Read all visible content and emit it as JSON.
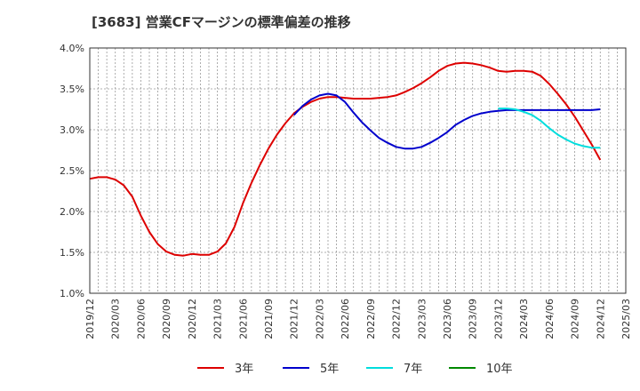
{
  "chart_data": {
    "type": "line",
    "title": "[3683]  営業CFマージンの標準偏差の推移",
    "xlabel": "",
    "ylabel": "",
    "ylim": [
      0.01,
      0.04
    ],
    "grid": true,
    "legend_placement": "bottom",
    "x_ticks": [
      "2019/12",
      "2020/03",
      "2020/06",
      "2020/09",
      "2020/12",
      "2021/03",
      "2021/06",
      "2021/09",
      "2021/12",
      "2022/03",
      "2022/06",
      "2022/09",
      "2022/12",
      "2023/03",
      "2023/06",
      "2023/09",
      "2023/12",
      "2024/03",
      "2024/06",
      "2024/09",
      "2024/12",
      "2025/03"
    ],
    "y_ticks": [
      {
        "value": 0.01,
        "label": "1.0%"
      },
      {
        "value": 0.015,
        "label": "1.5%"
      },
      {
        "value": 0.02,
        "label": "2.0%"
      },
      {
        "value": 0.025,
        "label": "2.5%"
      },
      {
        "value": 0.03,
        "label": "3.0%"
      },
      {
        "value": 0.035,
        "label": "3.5%"
      },
      {
        "value": 0.04,
        "label": "4.0%"
      }
    ],
    "series": [
      {
        "name": "3年",
        "color": "#dd0000",
        "points": [
          [
            "2019/12",
            0.024
          ],
          [
            "2020/01",
            0.0242
          ],
          [
            "2020/02",
            0.0242
          ],
          [
            "2020/03",
            0.0239
          ],
          [
            "2020/04",
            0.0232
          ],
          [
            "2020/05",
            0.0218
          ],
          [
            "2020/06",
            0.0195
          ],
          [
            "2020/07",
            0.0175
          ],
          [
            "2020/08",
            0.016
          ],
          [
            "2020/09",
            0.0151
          ],
          [
            "2020/10",
            0.0147
          ],
          [
            "2020/11",
            0.0146
          ],
          [
            "2020/12",
            0.0148
          ],
          [
            "2021/01",
            0.0147
          ],
          [
            "2021/02",
            0.0147
          ],
          [
            "2021/03",
            0.0151
          ],
          [
            "2021/04",
            0.0161
          ],
          [
            "2021/05",
            0.0181
          ],
          [
            "2021/06",
            0.021
          ],
          [
            "2021/07",
            0.0235
          ],
          [
            "2021/08",
            0.0257
          ],
          [
            "2021/09",
            0.0277
          ],
          [
            "2021/10",
            0.0294
          ],
          [
            "2021/11",
            0.0308
          ],
          [
            "2021/12",
            0.032
          ],
          [
            "2022/01",
            0.0328
          ],
          [
            "2022/02",
            0.0334
          ],
          [
            "2022/03",
            0.0338
          ],
          [
            "2022/04",
            0.034
          ],
          [
            "2022/05",
            0.034
          ],
          [
            "2022/06",
            0.0339
          ],
          [
            "2022/07",
            0.0338
          ],
          [
            "2022/08",
            0.0338
          ],
          [
            "2022/09",
            0.0338
          ],
          [
            "2022/10",
            0.0339
          ],
          [
            "2022/11",
            0.034
          ],
          [
            "2022/12",
            0.0342
          ],
          [
            "2023/01",
            0.0346
          ],
          [
            "2023/02",
            0.0351
          ],
          [
            "2023/03",
            0.0357
          ],
          [
            "2023/04",
            0.0364
          ],
          [
            "2023/05",
            0.0372
          ],
          [
            "2023/06",
            0.0378
          ],
          [
            "2023/07",
            0.0381
          ],
          [
            "2023/08",
            0.0382
          ],
          [
            "2023/09",
            0.0381
          ],
          [
            "2023/10",
            0.0379
          ],
          [
            "2023/11",
            0.0376
          ],
          [
            "2023/12",
            0.0372
          ],
          [
            "2024/01",
            0.0371
          ],
          [
            "2024/02",
            0.0372
          ],
          [
            "2024/03",
            0.0372
          ],
          [
            "2024/04",
            0.0371
          ],
          [
            "2024/05",
            0.0366
          ],
          [
            "2024/06",
            0.0356
          ],
          [
            "2024/07",
            0.0344
          ],
          [
            "2024/08",
            0.0331
          ],
          [
            "2024/09",
            0.0316
          ],
          [
            "2024/10",
            0.0299
          ],
          [
            "2024/11",
            0.0282
          ],
          [
            "2024/12",
            0.0263
          ]
        ]
      },
      {
        "name": "5年",
        "color": "#0000cc",
        "points": [
          [
            "2021/12",
            0.0318
          ],
          [
            "2022/01",
            0.0329
          ],
          [
            "2022/02",
            0.0337
          ],
          [
            "2022/03",
            0.0342
          ],
          [
            "2022/04",
            0.0344
          ],
          [
            "2022/05",
            0.0342
          ],
          [
            "2022/06",
            0.0334
          ],
          [
            "2022/07",
            0.0321
          ],
          [
            "2022/08",
            0.0309
          ],
          [
            "2022/09",
            0.0299
          ],
          [
            "2022/10",
            0.029
          ],
          [
            "2022/11",
            0.0284
          ],
          [
            "2022/12",
            0.0279
          ],
          [
            "2023/01",
            0.0277
          ],
          [
            "2023/02",
            0.0277
          ],
          [
            "2023/03",
            0.0279
          ],
          [
            "2023/04",
            0.0284
          ],
          [
            "2023/05",
            0.029
          ],
          [
            "2023/06",
            0.0297
          ],
          [
            "2023/07",
            0.0306
          ],
          [
            "2023/08",
            0.0312
          ],
          [
            "2023/09",
            0.0317
          ],
          [
            "2023/10",
            0.032
          ],
          [
            "2023/11",
            0.0322
          ],
          [
            "2023/12",
            0.0323
          ],
          [
            "2024/01",
            0.0324
          ],
          [
            "2024/02",
            0.0324
          ],
          [
            "2024/03",
            0.0324
          ],
          [
            "2024/04",
            0.0324
          ],
          [
            "2024/05",
            0.0324
          ],
          [
            "2024/06",
            0.0324
          ],
          [
            "2024/07",
            0.0324
          ],
          [
            "2024/08",
            0.0324
          ],
          [
            "2024/09",
            0.0324
          ],
          [
            "2024/10",
            0.0324
          ],
          [
            "2024/11",
            0.0324
          ],
          [
            "2024/12",
            0.0325
          ]
        ]
      },
      {
        "name": "7年",
        "color": "#00dddd",
        "points": [
          [
            "2023/12",
            0.0326
          ],
          [
            "2024/01",
            0.0326
          ],
          [
            "2024/02",
            0.0325
          ],
          [
            "2024/03",
            0.0322
          ],
          [
            "2024/04",
            0.0318
          ],
          [
            "2024/05",
            0.0311
          ],
          [
            "2024/06",
            0.0302
          ],
          [
            "2024/07",
            0.0294
          ],
          [
            "2024/08",
            0.0288
          ],
          [
            "2024/09",
            0.0283
          ],
          [
            "2024/10",
            0.028
          ],
          [
            "2024/11",
            0.0278
          ],
          [
            "2024/12",
            0.0278
          ]
        ]
      },
      {
        "name": "10年",
        "color": "#008800",
        "points": []
      }
    ]
  }
}
